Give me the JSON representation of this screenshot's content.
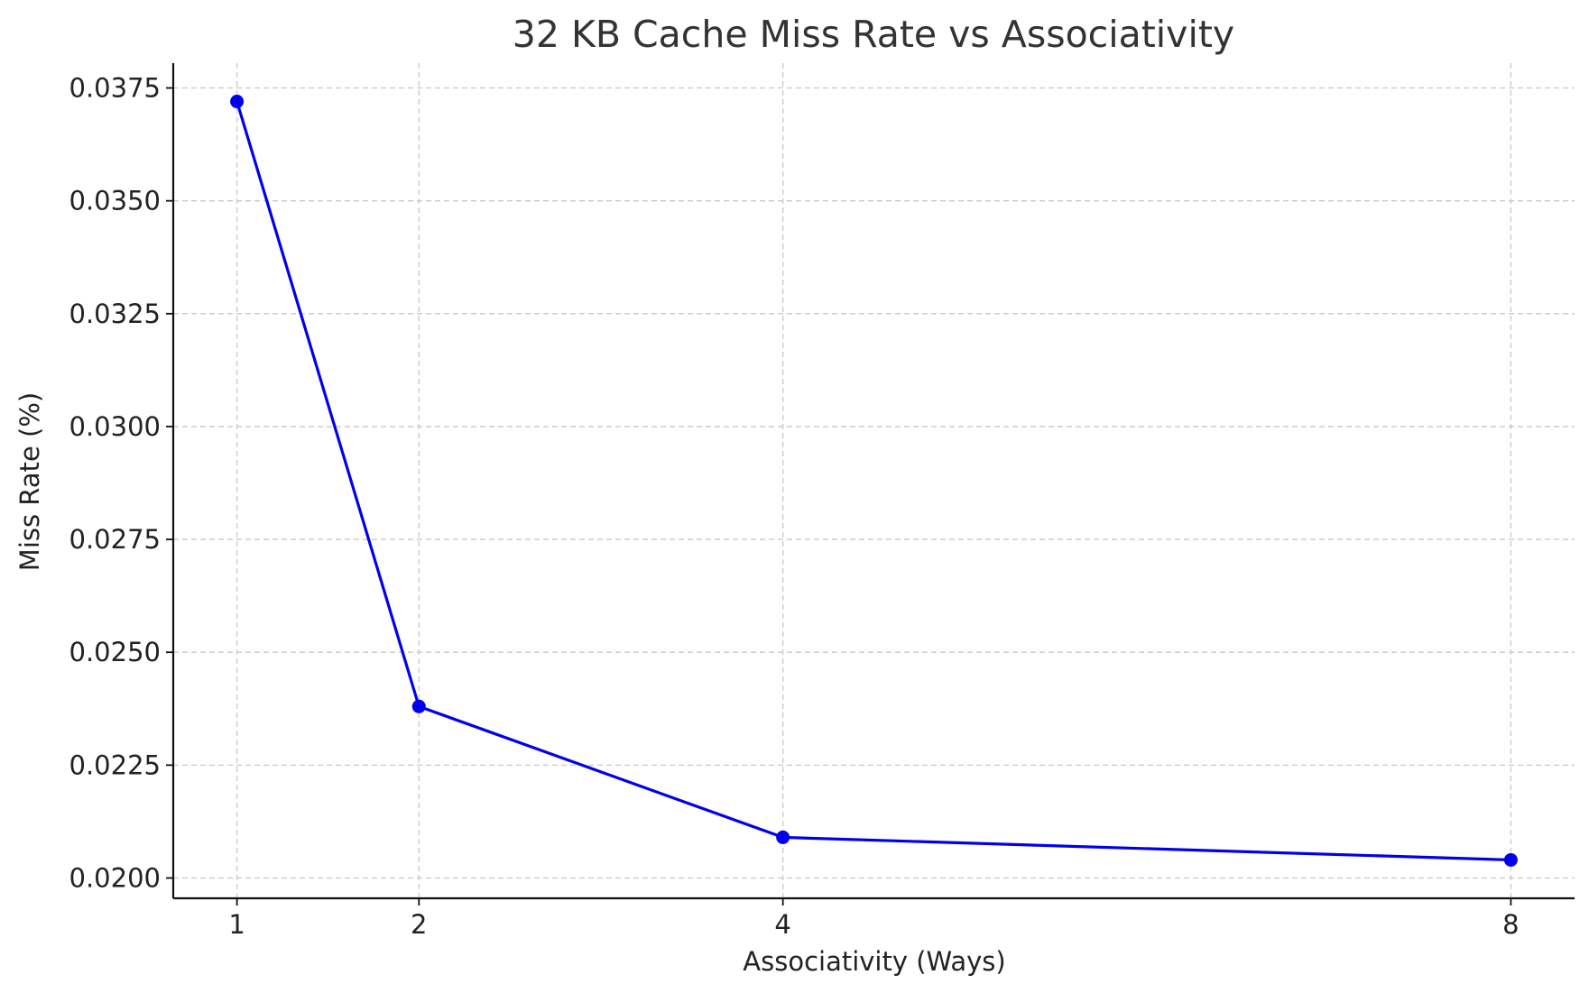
{
  "chart_data": {
    "type": "line",
    "title": "32 KB Cache Miss Rate vs Associativity",
    "xlabel": "Associativity (Ways)",
    "ylabel": "Miss Rate (%)",
    "x": [
      1,
      2,
      4,
      8
    ],
    "series": [
      {
        "values": [
          0.0372,
          0.0238,
          0.0209,
          0.0204
        ],
        "color": "#0000ee",
        "marker": "circle"
      }
    ],
    "xticks": [
      "1",
      "2",
      "4",
      "8"
    ],
    "yticks": [
      "0.0200",
      "0.0225",
      "0.0250",
      "0.0275",
      "0.0300",
      "0.0325",
      "0.0350",
      "0.0375"
    ],
    "xlim": [
      0.65,
      8.35
    ],
    "ylim": [
      0.01955,
      0.03805
    ],
    "grid": true,
    "grid_style": "dashed",
    "legend": false
  }
}
